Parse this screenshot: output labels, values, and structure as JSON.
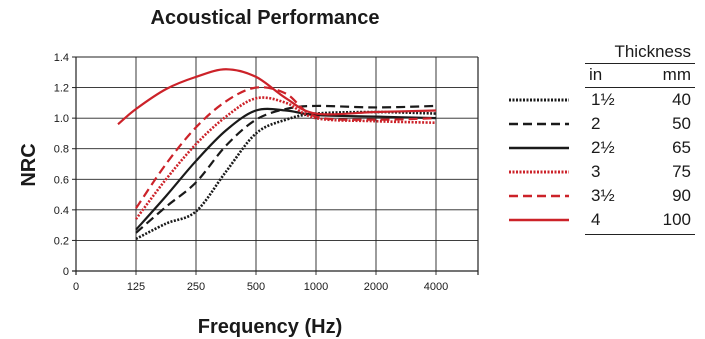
{
  "chart_data": {
    "type": "line",
    "title": "Acoustical Performance",
    "xlabel": "Frequency (Hz)",
    "ylabel": "NRC",
    "categories": [
      "0",
      "125",
      "250",
      "500",
      "1000",
      "2000",
      "4000"
    ],
    "yticks": [
      "0",
      "0.2",
      "0.4",
      "0.6",
      "0.8",
      "1.0",
      "1.2",
      "1.4"
    ],
    "ylim": [
      0,
      1.4
    ],
    "grid": true,
    "legend_position": "right",
    "legend": {
      "title": "Thickness",
      "col_in": "in",
      "col_mm": "mm"
    },
    "series": [
      {
        "in": "1½",
        "mm": "40",
        "color": "#1a1a1a",
        "dash": "dotted",
        "points": [
          [
            1.0,
            0.21
          ],
          [
            1.5,
            0.31
          ],
          [
            2.0,
            0.39
          ],
          [
            2.5,
            0.65
          ],
          [
            3.0,
            0.9
          ],
          [
            3.5,
            0.99
          ],
          [
            4.0,
            1.03
          ],
          [
            5.0,
            1.04
          ],
          [
            6.0,
            1.03
          ]
        ]
      },
      {
        "in": "2",
        "mm": "50",
        "color": "#1a1a1a",
        "dash": "dashed",
        "points": [
          [
            1.0,
            0.25
          ],
          [
            1.5,
            0.42
          ],
          [
            2.0,
            0.58
          ],
          [
            2.5,
            0.82
          ],
          [
            3.0,
            0.99
          ],
          [
            3.5,
            1.06
          ],
          [
            4.0,
            1.08
          ],
          [
            5.0,
            1.07
          ],
          [
            6.0,
            1.08
          ]
        ]
      },
      {
        "in": "2½",
        "mm": "65",
        "color": "#1a1a1a",
        "dash": "solid",
        "points": [
          [
            1.0,
            0.27
          ],
          [
            1.5,
            0.49
          ],
          [
            2.0,
            0.72
          ],
          [
            2.5,
            0.92
          ],
          [
            3.0,
            1.05
          ],
          [
            3.5,
            1.05
          ],
          [
            4.0,
            1.02
          ],
          [
            5.0,
            1.01
          ],
          [
            6.0,
            1.0
          ]
        ]
      },
      {
        "in": "3",
        "mm": "75",
        "color": "#cc2229",
        "dash": "dotted",
        "points": [
          [
            1.0,
            0.34
          ],
          [
            1.5,
            0.6
          ],
          [
            2.0,
            0.83
          ],
          [
            2.5,
            1.01
          ],
          [
            3.0,
            1.13
          ],
          [
            3.5,
            1.1
          ],
          [
            4.0,
            1.0
          ],
          [
            5.0,
            0.98
          ],
          [
            6.0,
            0.97
          ]
        ]
      },
      {
        "in": "3½",
        "mm": "90",
        "color": "#cc2229",
        "dash": "dashed",
        "points": [
          [
            1.0,
            0.41
          ],
          [
            1.5,
            0.7
          ],
          [
            2.0,
            0.94
          ],
          [
            2.5,
            1.11
          ],
          [
            3.0,
            1.2
          ],
          [
            3.5,
            1.16
          ],
          [
            4.0,
            1.01
          ],
          [
            5.0,
            0.99
          ],
          [
            6.0,
            1.0
          ]
        ]
      },
      {
        "in": "4",
        "mm": "100",
        "color": "#cc2229",
        "dash": "solid",
        "points": [
          [
            0.7,
            0.96
          ],
          [
            1.0,
            1.06
          ],
          [
            1.5,
            1.19
          ],
          [
            2.0,
            1.27
          ],
          [
            2.5,
            1.32
          ],
          [
            3.0,
            1.27
          ],
          [
            3.5,
            1.13
          ],
          [
            4.0,
            1.03
          ],
          [
            5.0,
            1.04
          ],
          [
            6.0,
            1.05
          ]
        ]
      }
    ]
  }
}
